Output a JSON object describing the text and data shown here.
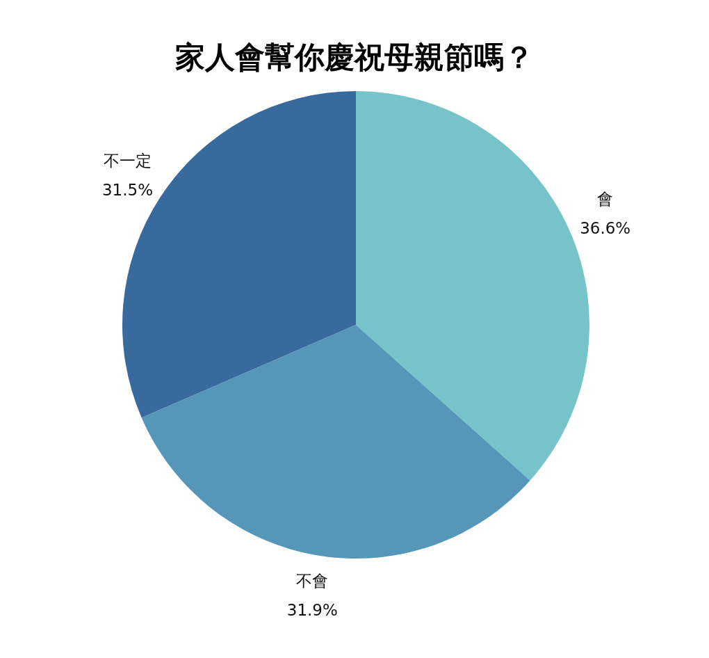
{
  "chart_data": {
    "type": "pie",
    "title": "家人會幫你慶祝母親節嗎？",
    "categories": [
      "會",
      "不會",
      "不一定"
    ],
    "values": [
      36.6,
      31.9,
      31.5
    ],
    "value_labels": [
      "36.6%",
      "31.9%",
      "31.5%"
    ],
    "colors": [
      "#76c3c9",
      "#5596b9",
      "#396a9e"
    ],
    "legend": false
  }
}
